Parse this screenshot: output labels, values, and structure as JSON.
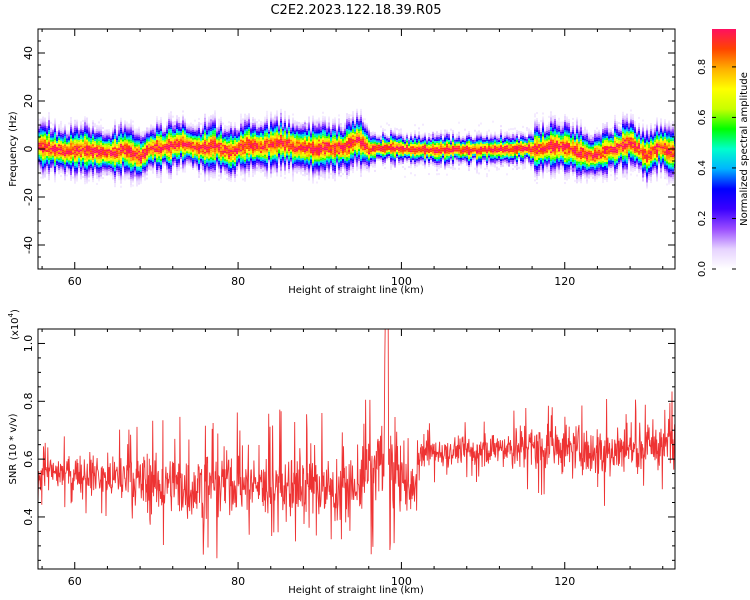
{
  "title": "C2E2.2023.122.18.39.R05",
  "chart_data": [
    {
      "type": "heatmap",
      "xlabel": "Height of straight line (km)",
      "ylabel": "Frequency (Hz)",
      "xlim": [
        55.5,
        133.5
      ],
      "ylim": [
        -50,
        50
      ],
      "xticks": [
        60,
        80,
        100,
        120
      ],
      "yticks": [
        -40,
        -20,
        0,
        20,
        40
      ],
      "colorbar": {
        "label": "Normalized spectral amplitude",
        "ticks": [
          "0.0",
          "0.2",
          "0.4",
          "0.6",
          "0.8"
        ],
        "range": [
          0,
          0.95
        ],
        "colors": [
          "#ffffff",
          "#e6d2ff",
          "#9a4dff",
          "#3a00ff",
          "#0000ff",
          "#00b4ff",
          "#00ffcc",
          "#00ff00",
          "#c8ff00",
          "#ffff00",
          "#ffb000",
          "#ff4400",
          "#ff1060"
        ]
      },
      "band_center_hz": [
        [
          55.5,
          1.5
        ],
        [
          57,
          0.5
        ],
        [
          59,
          -0.5
        ],
        [
          61,
          0.2
        ],
        [
          63,
          -1.0
        ],
        [
          65,
          -1.5
        ],
        [
          66,
          0.5
        ],
        [
          68,
          -3.0
        ],
        [
          69,
          0.5
        ],
        [
          71,
          1.0
        ],
        [
          73,
          3.0
        ],
        [
          75,
          0.5
        ],
        [
          77,
          1.5
        ],
        [
          79,
          -1.0
        ],
        [
          81,
          2.0
        ],
        [
          83,
          1.5
        ],
        [
          85,
          3.0
        ],
        [
          87,
          1.0
        ],
        [
          89,
          0.5
        ],
        [
          91,
          1.0
        ],
        [
          93,
          0.5
        ],
        [
          94.5,
          4.5
        ],
        [
          96,
          0.2
        ],
        [
          98,
          1.0
        ],
        [
          100,
          0.5
        ],
        [
          102,
          0.2
        ],
        [
          105,
          0.0
        ],
        [
          110,
          0.0
        ],
        [
          114,
          0.5
        ],
        [
          117,
          0.5
        ],
        [
          119,
          1.5
        ],
        [
          121,
          0.0
        ],
        [
          123,
          -3.0
        ],
        [
          124.5,
          -1.0
        ],
        [
          126,
          0.5
        ],
        [
          128,
          3.0
        ],
        [
          130,
          -2.5
        ],
        [
          131.5,
          1.5
        ],
        [
          133.5,
          -2.0
        ]
      ]
    },
    {
      "type": "line",
      "xlabel": "Height of straight line (km)",
      "ylabel": "SNR (10 * v/v)",
      "ymultiplier": "(x10",
      "ymultiplier_exp": "4",
      "ymultiplier_close": ")",
      "xlim": [
        55.5,
        133.5
      ],
      "ylim": [
        0.22,
        1.05
      ],
      "xticks": [
        60,
        80,
        100,
        120
      ],
      "yticks": [
        "0.4",
        "0.6",
        "0.8",
        "1.0"
      ],
      "ytick_values": [
        0.4,
        0.6,
        0.8,
        1.0
      ],
      "color": "#ee3333",
      "envelope": [
        [
          55.5,
          0.55,
          0.08
        ],
        [
          62,
          0.55,
          0.1
        ],
        [
          68,
          0.52,
          0.14
        ],
        [
          74,
          0.5,
          0.17
        ],
        [
          80,
          0.52,
          0.17
        ],
        [
          88,
          0.5,
          0.18
        ],
        [
          94,
          0.5,
          0.17
        ],
        [
          96,
          0.55,
          0.2
        ],
        [
          98.2,
          0.6,
          0.24
        ],
        [
          100,
          0.55,
          0.17
        ],
        [
          101,
          0.48,
          0.14
        ],
        [
          102.5,
          0.62,
          0.07
        ],
        [
          108,
          0.63,
          0.07
        ],
        [
          114,
          0.64,
          0.1
        ],
        [
          120,
          0.64,
          0.13
        ],
        [
          126,
          0.63,
          0.13
        ],
        [
          133.5,
          0.66,
          0.13
        ]
      ]
    }
  ]
}
